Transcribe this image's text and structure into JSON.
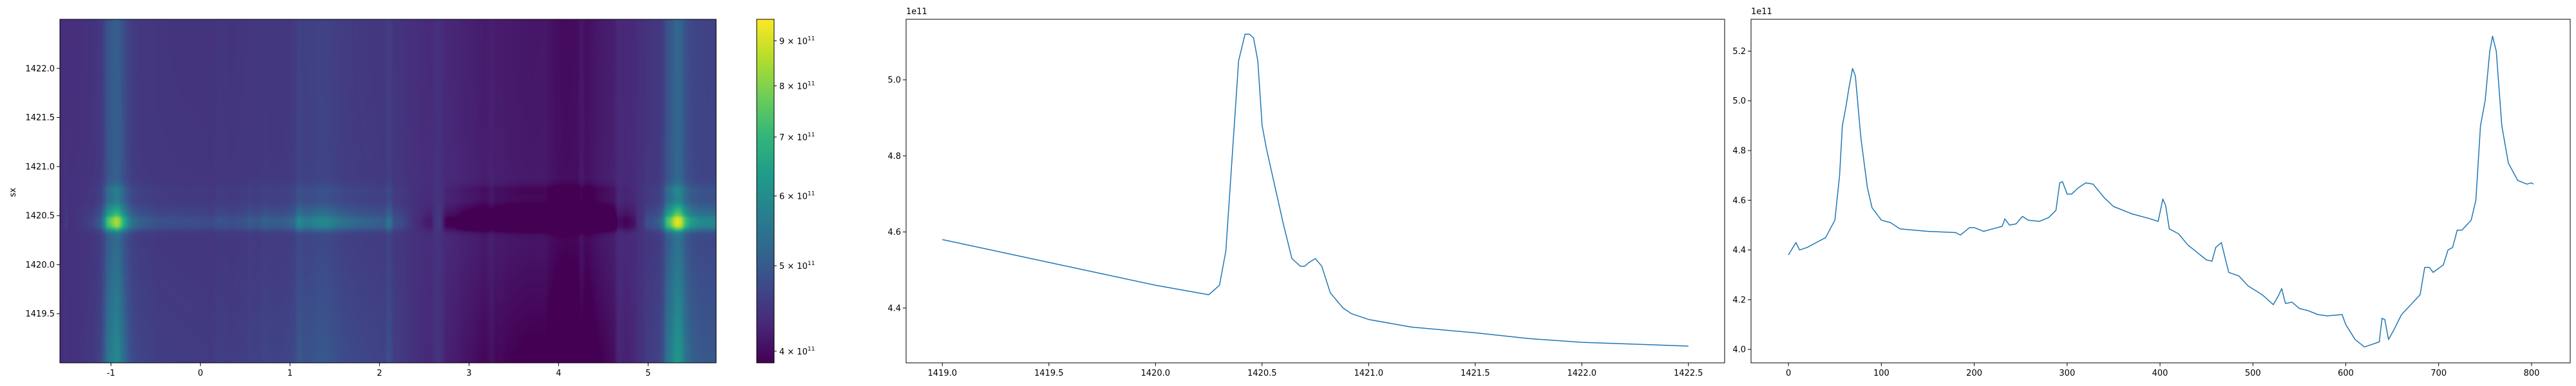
{
  "chart_data": [
    {
      "type": "heatmap",
      "colormap": "viridis",
      "color_scale": "log",
      "ylabel": "sx",
      "xlim": [
        -1.57,
        5.76
      ],
      "ylim": [
        1419.0,
        1422.5
      ],
      "xticks": [
        "-1",
        "0",
        "1",
        "2",
        "3",
        "4",
        "5"
      ],
      "yticks": [
        "1419.5",
        "1420.0",
        "1420.5",
        "1421.0",
        "1421.5",
        "1422.0"
      ],
      "colorbar": {
        "range": [
          388000000000.0,
          952000000000.0
        ],
        "ticks": [
          400000000000.0,
          500000000000.0,
          600000000000.0,
          700000000000.0,
          800000000000.0,
          900000000000.0
        ],
        "tick_labels": [
          {
            "mant": "4",
            "exp": "11"
          },
          {
            "mant": "5",
            "exp": "11"
          },
          {
            "mant": "6",
            "exp": "11"
          },
          {
            "mant": "7",
            "exp": "11"
          },
          {
            "mant": "8",
            "exp": "11"
          },
          {
            "mant": "9",
            "exp": "11"
          }
        ]
      }
    },
    {
      "type": "line",
      "offset_label": "1e11",
      "color": "#1f77b4",
      "xlim": [
        1418.83,
        1422.67
      ],
      "ylim": [
        4.256,
        5.159
      ],
      "xticks": [
        "1419.0",
        "1419.5",
        "1420.0",
        "1420.5",
        "1421.0",
        "1421.5",
        "1422.0",
        "1422.5"
      ],
      "yticks": [
        "4.4",
        "4.6",
        "4.8",
        "5.0"
      ],
      "x": [
        1419.0,
        1419.25,
        1419.5,
        1419.75,
        1420.0,
        1420.15,
        1420.25,
        1420.3,
        1420.33,
        1420.36,
        1420.39,
        1420.42,
        1420.44,
        1420.46,
        1420.48,
        1420.5,
        1420.52,
        1420.56,
        1420.6,
        1420.64,
        1420.68,
        1420.7,
        1420.72,
        1420.75,
        1420.78,
        1420.82,
        1420.85,
        1420.88,
        1420.92,
        1421.0,
        1421.2,
        1421.5,
        1421.75,
        1422.0,
        1422.25,
        1422.5
      ],
      "y": [
        4.58,
        4.55,
        4.52,
        4.49,
        4.46,
        4.445,
        4.435,
        4.46,
        4.55,
        4.8,
        5.05,
        5.12,
        5.12,
        5.11,
        5.05,
        4.88,
        4.82,
        4.72,
        4.62,
        4.53,
        4.51,
        4.51,
        4.52,
        4.53,
        4.51,
        4.44,
        4.42,
        4.4,
        4.385,
        4.37,
        4.35,
        4.335,
        4.32,
        4.31,
        4.305,
        4.3
      ]
    },
    {
      "type": "line",
      "offset_label": "1e11",
      "color": "#1f77b4",
      "xlim": [
        -40.3,
        841.6
      ],
      "ylim": [
        3.946,
        5.328
      ],
      "xticks": [
        "0",
        "100",
        "200",
        "300",
        "400",
        "500",
        "600",
        "700",
        "800"
      ],
      "yticks": [
        "4.0",
        "4.2",
        "4.4",
        "4.6",
        "4.8",
        "5.0",
        "5.2"
      ],
      "x": [
        0,
        8,
        12,
        20,
        30,
        40,
        50,
        55,
        58,
        62,
        65,
        69,
        72,
        78,
        85,
        90,
        100,
        110,
        120,
        150,
        180,
        185,
        195,
        200,
        210,
        220,
        230,
        233,
        238,
        245,
        252,
        258,
        270,
        280,
        288,
        292,
        295,
        300,
        305,
        312,
        320,
        328,
        340,
        350,
        370,
        390,
        398,
        403,
        406,
        410,
        420,
        430,
        440,
        450,
        456,
        460,
        466,
        470,
        474,
        485,
        495,
        510,
        522,
        528,
        531,
        535,
        542,
        550,
        560,
        570,
        580,
        596,
        600,
        610,
        620,
        628,
        636,
        639,
        642,
        646,
        652,
        660,
        670,
        680,
        685,
        690,
        694,
        705,
        710,
        715,
        720,
        725,
        735,
        740,
        745,
        750,
        755,
        758,
        762,
        768,
        775,
        785,
        795,
        800,
        802
      ],
      "y": [
        4.38,
        4.43,
        4.4,
        4.41,
        4.43,
        4.45,
        4.52,
        4.7,
        4.9,
        4.98,
        5.05,
        5.13,
        5.1,
        4.85,
        4.65,
        4.57,
        4.52,
        4.51,
        4.485,
        4.475,
        4.47,
        4.46,
        4.49,
        4.49,
        4.475,
        4.485,
        4.495,
        4.525,
        4.5,
        4.505,
        4.535,
        4.52,
        4.515,
        4.53,
        4.56,
        4.67,
        4.675,
        4.625,
        4.625,
        4.65,
        4.67,
        4.665,
        4.61,
        4.575,
        4.545,
        4.525,
        4.515,
        4.605,
        4.58,
        4.485,
        4.465,
        4.42,
        4.39,
        4.36,
        4.355,
        4.41,
        4.43,
        4.37,
        4.31,
        4.295,
        4.255,
        4.22,
        4.18,
        4.22,
        4.245,
        4.185,
        4.19,
        4.165,
        4.155,
        4.14,
        4.135,
        4.14,
        4.1,
        4.04,
        4.01,
        4.02,
        4.03,
        4.125,
        4.12,
        4.04,
        4.08,
        4.14,
        4.18,
        4.22,
        4.33,
        4.33,
        4.31,
        4.34,
        4.4,
        4.41,
        4.48,
        4.48,
        4.52,
        4.6,
        4.9,
        5.0,
        5.2,
        5.26,
        5.2,
        4.9,
        4.75,
        4.68,
        4.665,
        4.67,
        4.665
      ]
    }
  ]
}
